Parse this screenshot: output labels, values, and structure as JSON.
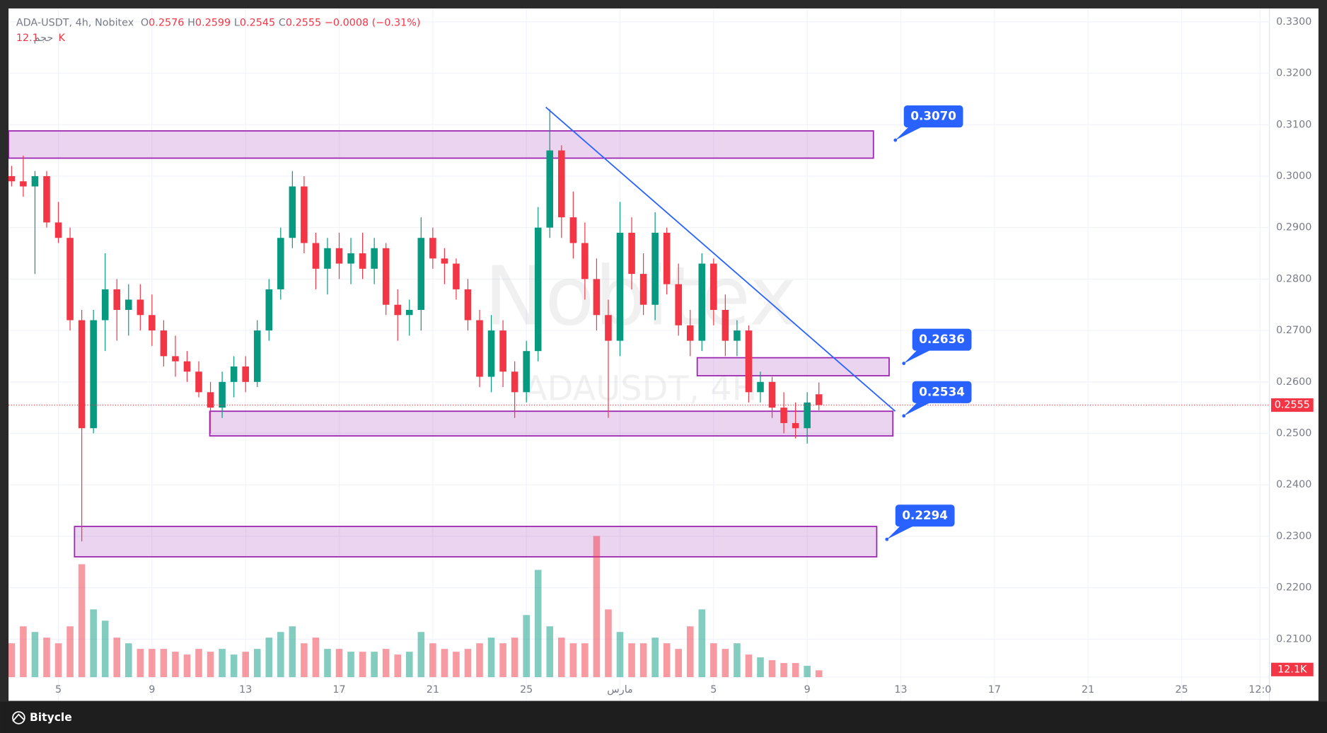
{
  "chart_data": {
    "type": "candlestick",
    "symbol": "ADA-USDT, 4h, Nobitex",
    "ohlc_labels": [
      "O",
      "H",
      "L",
      "C"
    ],
    "change": "−0.0008 (−0.31%)",
    "volume_name": "حجم",
    "volume_label": "12.1K",
    "watermark": "Nobitex",
    "watermark_sub": "ADAUSDT, 4H",
    "up_color": "#089981",
    "down_color": "#f23645",
    "zone_color": "#9c27b0",
    "trend_color": "#2962ff",
    "callout_color": "#2962ff",
    "grid": true,
    "x": [
      -2,
      -1.5,
      -1,
      -0.5,
      0,
      0.5,
      1,
      1.5,
      2,
      2.5,
      3,
      3.5,
      4,
      4.5,
      5,
      5.5,
      6,
      6.5,
      7,
      7.5,
      8,
      8.5,
      9,
      9.5,
      10,
      10.5,
      11,
      11.5,
      12,
      12.5,
      13,
      13.5,
      14,
      14.5,
      15,
      15.5,
      16,
      16.5,
      17,
      17.5,
      18,
      18.5,
      19,
      19.5,
      20,
      20.5,
      21,
      21.5,
      22,
      22.5,
      23,
      23.5,
      24,
      24.5,
      25,
      25.5,
      26,
      26.5,
      27,
      27.5,
      28,
      28.5,
      29,
      29.5,
      30,
      30.5,
      31,
      31.5,
      32,
      32.5
    ],
    "open": [
      0.3,
      0.299,
      0.298,
      0.3,
      0.291,
      0.288,
      0.272,
      0.251,
      0.272,
      0.278,
      0.274,
      0.276,
      0.273,
      0.27,
      0.265,
      0.264,
      0.262,
      0.258,
      0.255,
      0.26,
      0.263,
      0.26,
      0.27,
      0.278,
      0.288,
      0.298,
      0.287,
      0.282,
      0.286,
      0.283,
      0.285,
      0.282,
      0.286,
      0.275,
      0.273,
      0.274,
      0.288,
      0.284,
      0.283,
      0.278,
      0.272,
      0.261,
      0.27,
      0.262,
      0.258,
      0.266,
      0.29,
      0.305,
      0.292,
      0.287,
      0.28,
      0.273,
      0.268,
      0.289,
      0.281,
      0.275,
      0.289,
      0.279,
      0.271,
      0.268,
      0.283,
      0.274,
      0.268,
      0.27,
      0.258,
      0.26,
      0.255,
      0.252,
      0.251,
      0.2576
    ],
    "high": [
      0.302,
      0.304,
      0.301,
      0.301,
      0.295,
      0.29,
      0.274,
      0.274,
      0.285,
      0.28,
      0.279,
      0.279,
      0.277,
      0.272,
      0.269,
      0.266,
      0.264,
      0.26,
      0.262,
      0.265,
      0.265,
      0.272,
      0.28,
      0.29,
      0.301,
      0.3,
      0.289,
      0.288,
      0.289,
      0.288,
      0.289,
      0.288,
      0.287,
      0.278,
      0.276,
      0.292,
      0.29,
      0.286,
      0.284,
      0.28,
      0.274,
      0.273,
      0.272,
      0.264,
      0.268,
      0.294,
      0.313,
      0.306,
      0.297,
      0.291,
      0.284,
      0.276,
      0.295,
      0.292,
      0.285,
      0.293,
      0.29,
      0.283,
      0.274,
      0.285,
      0.284,
      0.277,
      0.272,
      0.271,
      0.262,
      0.261,
      0.258,
      0.256,
      0.258,
      0.2599
    ],
    "low": [
      0.298,
      0.296,
      0.281,
      0.29,
      0.287,
      0.27,
      0.229,
      0.25,
      0.266,
      0.268,
      0.269,
      0.27,
      0.267,
      0.263,
      0.261,
      0.26,
      0.257,
      0.25,
      0.253,
      0.257,
      0.258,
      0.259,
      0.268,
      0.276,
      0.286,
      0.285,
      0.278,
      0.277,
      0.28,
      0.279,
      0.28,
      0.279,
      0.273,
      0.268,
      0.269,
      0.27,
      0.282,
      0.279,
      0.276,
      0.27,
      0.259,
      0.258,
      0.259,
      0.253,
      0.256,
      0.264,
      0.288,
      0.288,
      0.284,
      0.276,
      0.27,
      0.253,
      0.265,
      0.278,
      0.273,
      0.272,
      0.277,
      0.269,
      0.265,
      0.266,
      0.271,
      0.265,
      0.265,
      0.256,
      0.256,
      0.253,
      0.25,
      0.249,
      0.248,
      0.2545
    ],
    "close": [
      0.299,
      0.298,
      0.3,
      0.291,
      0.288,
      0.272,
      0.251,
      0.272,
      0.278,
      0.274,
      0.276,
      0.273,
      0.27,
      0.265,
      0.264,
      0.262,
      0.258,
      0.255,
      0.26,
      0.263,
      0.26,
      0.27,
      0.278,
      0.288,
      0.298,
      0.287,
      0.282,
      0.286,
      0.283,
      0.285,
      0.282,
      0.286,
      0.275,
      0.273,
      0.274,
      0.288,
      0.284,
      0.283,
      0.278,
      0.272,
      0.261,
      0.27,
      0.262,
      0.258,
      0.266,
      0.29,
      0.305,
      0.292,
      0.287,
      0.28,
      0.273,
      0.268,
      0.289,
      0.281,
      0.275,
      0.289,
      0.279,
      0.271,
      0.268,
      0.283,
      0.274,
      0.268,
      0.27,
      0.258,
      0.26,
      0.255,
      0.252,
      0.251,
      0.256,
      0.2555
    ],
    "volume": [
      60000,
      90000,
      80000,
      70000,
      60000,
      90000,
      200000,
      120000,
      100000,
      70000,
      60000,
      50000,
      50000,
      50000,
      45000,
      40000,
      50000,
      45000,
      50000,
      40000,
      45000,
      50000,
      70000,
      80000,
      90000,
      60000,
      70000,
      50000,
      50000,
      45000,
      45000,
      45000,
      50000,
      40000,
      45000,
      80000,
      60000,
      50000,
      45000,
      50000,
      60000,
      70000,
      60000,
      70000,
      110000,
      190000,
      90000,
      70000,
      60000,
      60000,
      250000,
      120000,
      80000,
      60000,
      60000,
      70000,
      60000,
      50000,
      90000,
      120000,
      60000,
      50000,
      60000,
      40000,
      35000,
      30000,
      25000,
      25000,
      20000,
      12100
    ],
    "volume_lim": [
      0,
      1000000
    ],
    "xlim": [
      -2.13,
      51.75
    ],
    "xticks": [
      {
        "value": 0,
        "label": "5"
      },
      {
        "value": 4,
        "label": "9"
      },
      {
        "value": 8,
        "label": "13"
      },
      {
        "value": 12,
        "label": "17"
      },
      {
        "value": 16,
        "label": "21"
      },
      {
        "value": 20,
        "label": "25"
      },
      {
        "value": 24,
        "label": "مارس"
      },
      {
        "value": 28,
        "label": "5"
      },
      {
        "value": 32,
        "label": "9"
      },
      {
        "value": 36,
        "label": "13"
      },
      {
        "value": 40,
        "label": "17"
      },
      {
        "value": 44,
        "label": "21"
      },
      {
        "value": 48,
        "label": "25"
      },
      {
        "value": 51.35,
        "label": "12:0"
      }
    ],
    "ylim": [
      0.198,
      0.3326
    ],
    "yticks": [
      {
        "value": 0.33,
        "label": "0.3300"
      },
      {
        "value": 0.32,
        "label": "0.3200"
      },
      {
        "value": 0.31,
        "label": "0.3100"
      },
      {
        "value": 0.3,
        "label": "0.3000"
      },
      {
        "value": 0.29,
        "label": "0.2900"
      },
      {
        "value": 0.28,
        "label": "0.2800"
      },
      {
        "value": 0.27,
        "label": "0.2700"
      },
      {
        "value": 0.26,
        "label": "0.2600"
      },
      {
        "value": 0.25,
        "label": "0.2500"
      },
      {
        "value": 0.24,
        "label": "0.2400"
      },
      {
        "value": 0.23,
        "label": "0.2300"
      },
      {
        "value": 0.22,
        "label": "0.2200"
      },
      {
        "value": 0.21,
        "label": "0.2100"
      }
    ],
    "zones": [
      {
        "x": [
          -2.13,
          34.83
        ],
        "y": [
          0.3088,
          0.3035
        ]
      },
      {
        "x": [
          27.3,
          35.5
        ],
        "y": [
          0.2647,
          0.2612
        ]
      },
      {
        "x": [
          6.47,
          35.66
        ],
        "y": [
          0.2543,
          0.2495
        ]
      },
      {
        "x": [
          0.69,
          34.97
        ],
        "y": [
          0.2319,
          0.226
        ]
      }
    ],
    "trendline": {
      "x": [
        20.83,
        35.76
      ],
      "y": [
        0.3134,
        0.2543
      ]
    },
    "callouts": [
      {
        "value": 0.307,
        "label": "0.3070"
      },
      {
        "value": 0.2636,
        "label": "0.2636"
      },
      {
        "value": 0.2534,
        "label": "0.2534"
      },
      {
        "value": 0.2294,
        "label": "0.2294"
      }
    ]
  },
  "footer": {
    "brand": "Bitycle"
  }
}
